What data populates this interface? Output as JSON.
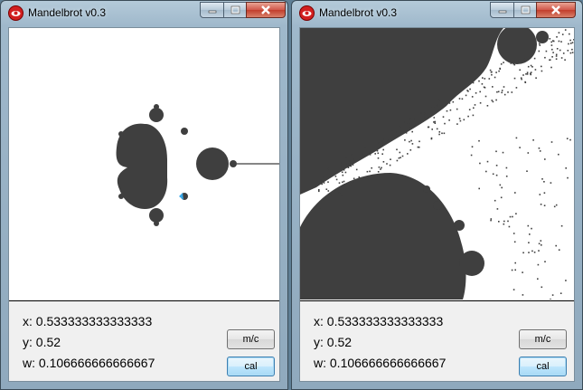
{
  "windows": [
    {
      "title": "Mandelbrot v0.3",
      "readout": {
        "x": "x: 0.533333333333333",
        "y": "y: 0.52",
        "w": "w: 0.106666666666667"
      },
      "buttons": {
        "mc": "m/c",
        "cal": "cal"
      }
    },
    {
      "title": "Mandelbrot v0.3",
      "readout": {
        "x": "x: 0.533333333333333",
        "y": "y: 0.52",
        "w": "w: 0.106666666666667"
      },
      "buttons": {
        "mc": "m/c",
        "cal": "cal"
      }
    }
  ],
  "controls": {
    "minimize": "minimize-icon",
    "maximize": "maximize-icon",
    "close": "close-icon"
  },
  "colors": {
    "fractal": "#3f3f3f",
    "canvas_bg": "#ffffff",
    "default_button": "#3c7fb1",
    "cursor": "#38a8e8"
  }
}
